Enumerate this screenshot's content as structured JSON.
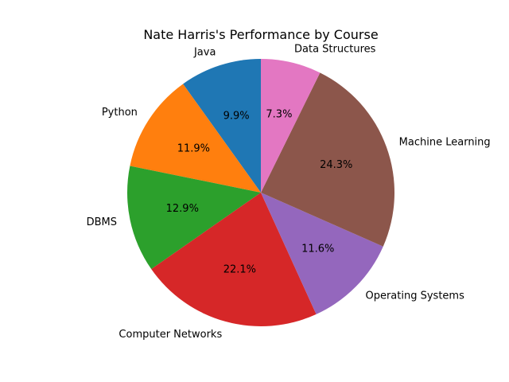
{
  "chart_data": {
    "type": "pie",
    "title": "Nate Harris's Performance by Course",
    "startangle": 90,
    "direction": "counterclockwise",
    "slices": [
      {
        "label": "Java",
        "percent": 9.9,
        "color": "#1f77b4"
      },
      {
        "label": "Python",
        "percent": 11.9,
        "color": "#ff7f0e"
      },
      {
        "label": "DBMS",
        "percent": 12.9,
        "color": "#2ca02c"
      },
      {
        "label": "Computer Networks",
        "percent": 22.1,
        "color": "#d62728"
      },
      {
        "label": "Operating Systems",
        "percent": 11.6,
        "color": "#9467bd"
      },
      {
        "label": "Machine Learning",
        "percent": 24.3,
        "color": "#8c564b"
      },
      {
        "label": "Data Structures",
        "percent": 7.3,
        "color": "#e377c2"
      }
    ]
  }
}
